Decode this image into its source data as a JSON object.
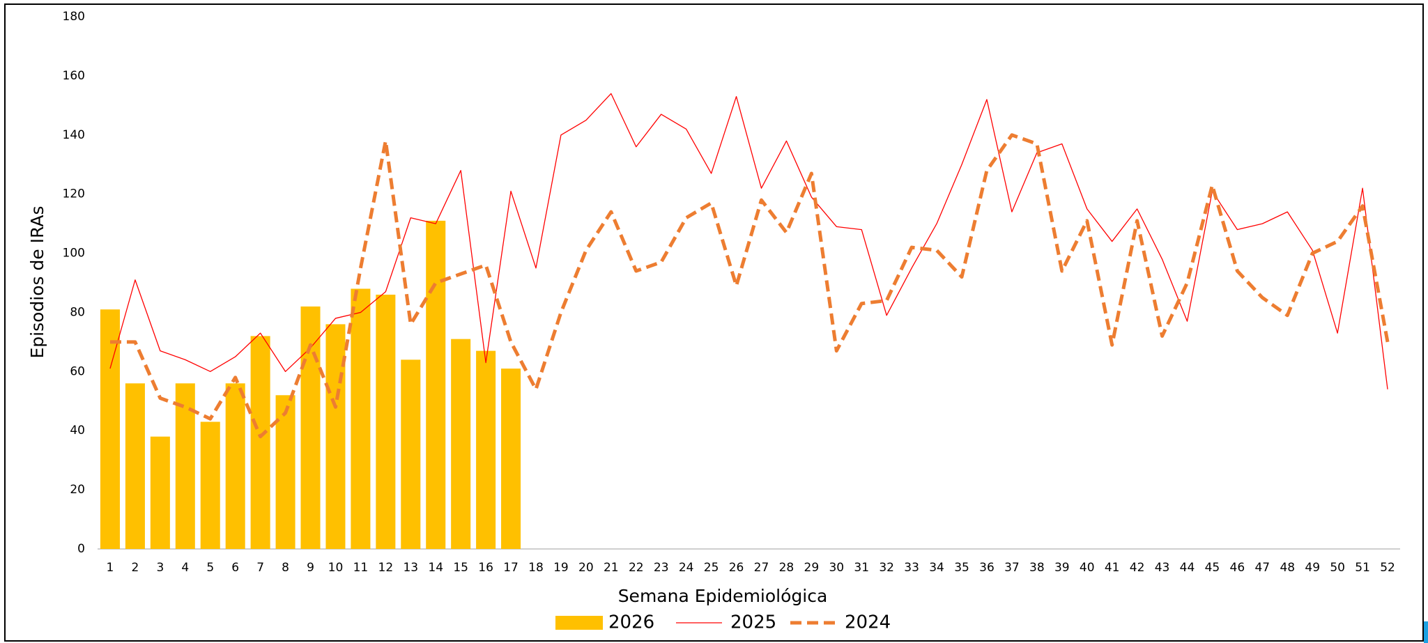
{
  "chart_data": {
    "type": "combo",
    "y_label": "Episodios de IRAs",
    "x_label": "Semana Epidemiológica",
    "categories": [
      "1",
      "2",
      "3",
      "4",
      "5",
      "6",
      "7",
      "8",
      "9",
      "10",
      "11",
      "12",
      "13",
      "14",
      "15",
      "16",
      "17",
      "18",
      "19",
      "20",
      "21",
      "22",
      "23",
      "24",
      "25",
      "26",
      "27",
      "28",
      "29",
      "30",
      "31",
      "32",
      "33",
      "34",
      "35",
      "36",
      "37",
      "38",
      "39",
      "40",
      "41",
      "42",
      "43",
      "44",
      "45",
      "46",
      "47",
      "48",
      "49",
      "50",
      "51",
      "52"
    ],
    "ylim": [
      0,
      180
    ],
    "yticks": [
      0,
      20,
      40,
      60,
      80,
      100,
      120,
      140,
      160,
      180
    ],
    "grid": false,
    "legend": "bottom",
    "series": [
      {
        "name": "2026",
        "type": "bar",
        "color": "#ffc000",
        "values": [
          81,
          56,
          38,
          56,
          43,
          56,
          72,
          52,
          82,
          76,
          88,
          86,
          64,
          111,
          71,
          67,
          61,
          null,
          null,
          null,
          null,
          null,
          null,
          null,
          null,
          null,
          null,
          null,
          null,
          null,
          null,
          null,
          null,
          null,
          null,
          null,
          null,
          null,
          null,
          null,
          null,
          null,
          null,
          null,
          null,
          null,
          null,
          null,
          null,
          null,
          null,
          null
        ]
      },
      {
        "name": "2025",
        "type": "line",
        "color": "#ff0000",
        "style": "solid",
        "values": [
          61,
          91,
          67,
          64,
          60,
          65,
          73,
          60,
          68,
          78,
          80,
          87,
          112,
          110,
          128,
          63,
          121,
          95,
          140,
          145,
          154,
          136,
          147,
          142,
          127,
          153,
          122,
          138,
          119,
          109,
          108,
          79,
          95,
          110,
          130,
          152,
          114,
          134,
          137,
          115,
          104,
          115,
          98,
          77,
          121,
          108,
          110,
          114,
          101,
          73,
          122,
          54
        ]
      },
      {
        "name": "2024",
        "type": "line",
        "color": "#ed7d31",
        "style": "dashed",
        "values": [
          70,
          70,
          51,
          48,
          44,
          58,
          38,
          46,
          69,
          48,
          95,
          138,
          76,
          90,
          93,
          96,
          70,
          54,
          80,
          101,
          114,
          94,
          97,
          112,
          117,
          89,
          118,
          107,
          127,
          67,
          83,
          84,
          102,
          101,
          92,
          128,
          140,
          137,
          94,
          111,
          69,
          111,
          72,
          90,
          123,
          94,
          85,
          79,
          100,
          104,
          116,
          70
        ]
      }
    ]
  }
}
